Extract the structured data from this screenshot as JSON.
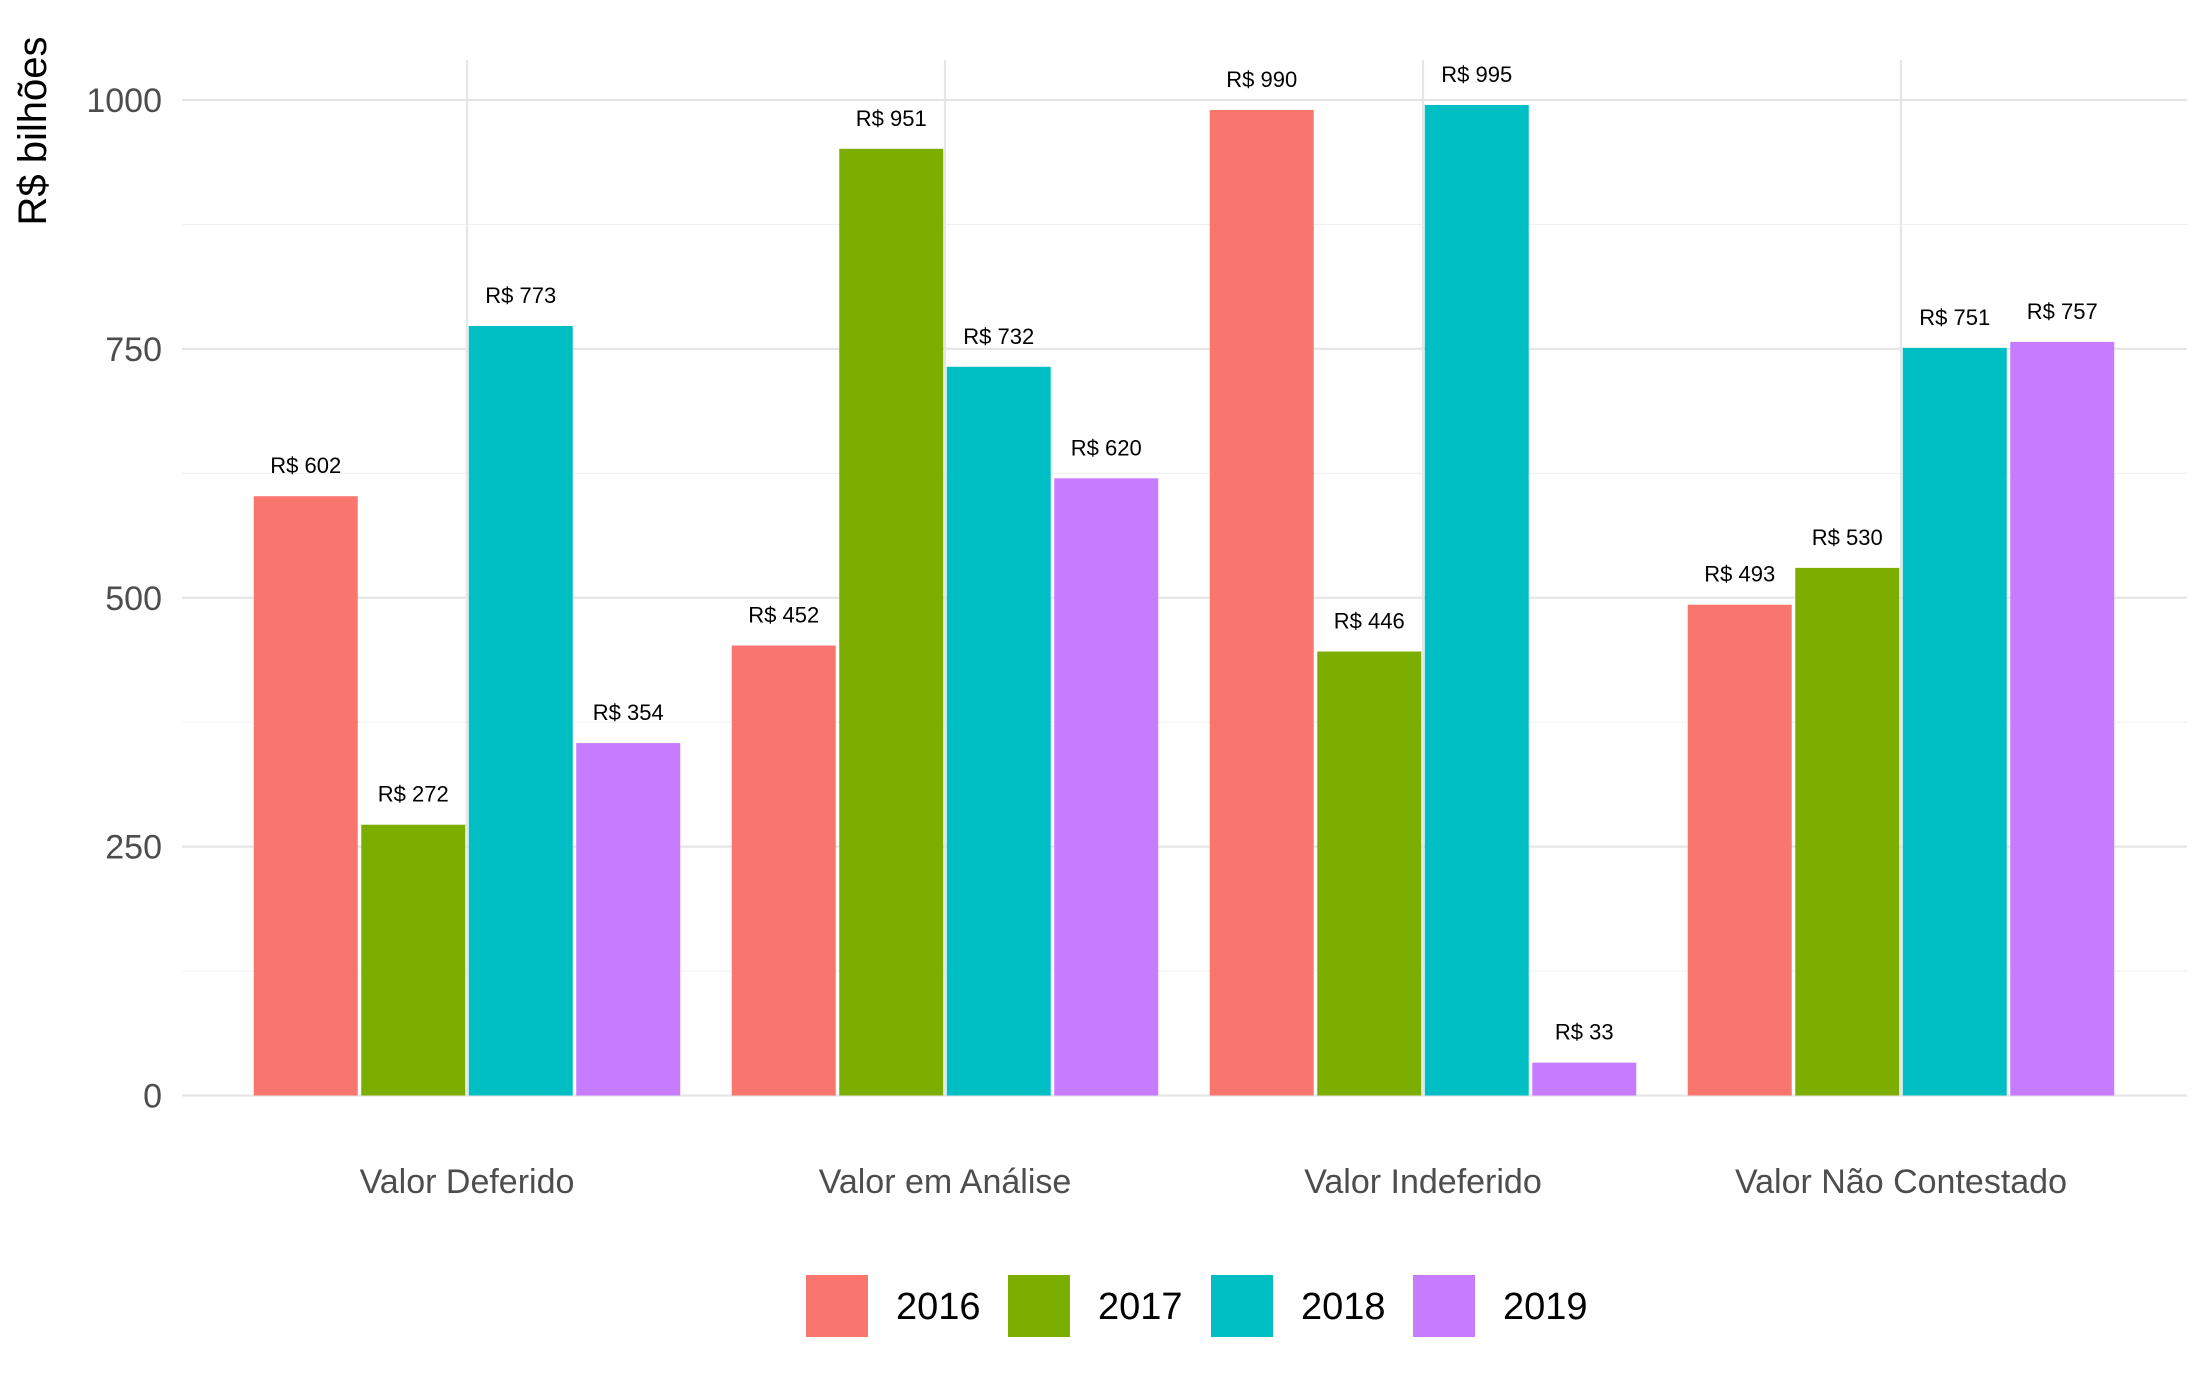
{
  "chart_data": {
    "type": "bar",
    "title": "",
    "xlabel": "",
    "ylabel": "R$ bilhões",
    "categories": [
      "Valor Deferido",
      "Valor em Análise",
      "Valor Indeferido",
      "Valor Não Contestado"
    ],
    "series": [
      {
        "name": "2016",
        "color": "#F8766D",
        "values": [
          602,
          452,
          990,
          493
        ],
        "labels": [
          "R$ 602",
          "R$ 452",
          "R$ 990",
          "R$ 493"
        ]
      },
      {
        "name": "2017",
        "color": "#7CAE00",
        "values": [
          272,
          951,
          446,
          530
        ],
        "labels": [
          "R$ 272",
          "R$ 951",
          "R$ 446",
          "R$ 530"
        ]
      },
      {
        "name": "2018",
        "color": "#00BFC4",
        "values": [
          773,
          732,
          995,
          751
        ],
        "labels": [
          "R$ 773",
          "R$ 732",
          "R$ 995",
          "R$ 751"
        ]
      },
      {
        "name": "2019",
        "color": "#C77CFF",
        "values": [
          354,
          620,
          33,
          757
        ],
        "labels": [
          "R$ 354",
          "R$ 620",
          "R$ 33",
          "R$ 757"
        ]
      }
    ],
    "ylim": [
      0,
      1000
    ],
    "yticks": [
      0,
      250,
      500,
      750,
      1000
    ],
    "ytick_labels": [
      "0",
      "250",
      "500",
      "750",
      "1000"
    ],
    "grid": true,
    "legend_position": "bottom"
  }
}
